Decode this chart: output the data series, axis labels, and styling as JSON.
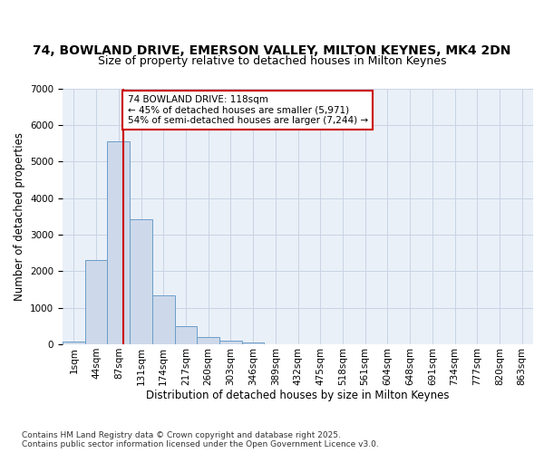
{
  "title1": "74, BOWLAND DRIVE, EMERSON VALLEY, MILTON KEYNES, MK4 2DN",
  "title2": "Size of property relative to detached houses in Milton Keynes",
  "xlabel": "Distribution of detached houses by size in Milton Keynes",
  "ylabel": "Number of detached properties",
  "bins": [
    "1sqm",
    "44sqm",
    "87sqm",
    "131sqm",
    "174sqm",
    "217sqm",
    "260sqm",
    "303sqm",
    "346sqm",
    "389sqm",
    "432sqm",
    "475sqm",
    "518sqm",
    "561sqm",
    "604sqm",
    "648sqm",
    "691sqm",
    "734sqm",
    "777sqm",
    "820sqm",
    "863sqm"
  ],
  "bar_values": [
    75,
    2300,
    5560,
    3420,
    1330,
    490,
    190,
    90,
    50,
    0,
    0,
    0,
    0,
    0,
    0,
    0,
    0,
    0,
    0,
    0,
    0
  ],
  "bar_color": "#cdd9ea",
  "bar_edge_color": "#6b9dc8",
  "grid_color": "#c8d4e4",
  "background_color": "#ffffff",
  "plot_bg_color": "#eaf0f8",
  "vline_bar_index": 1.72,
  "vline_color": "#cc0000",
  "annotation_text": "74 BOWLAND DRIVE: 118sqm\n← 45% of detached houses are smaller (5,971)\n54% of semi-detached houses are larger (7,244) →",
  "annotation_box_color": "#ffffff",
  "annotation_box_edge": "#cc0000",
  "ylim": [
    0,
    7000
  ],
  "yticks": [
    0,
    1000,
    2000,
    3000,
    4000,
    5000,
    6000,
    7000
  ],
  "footer": "Contains HM Land Registry data © Crown copyright and database right 2025.\nContains public sector information licensed under the Open Government Licence v3.0.",
  "title1_fontsize": 10,
  "title2_fontsize": 9,
  "axis_fontsize": 8.5,
  "tick_fontsize": 7.5,
  "footer_fontsize": 6.5
}
